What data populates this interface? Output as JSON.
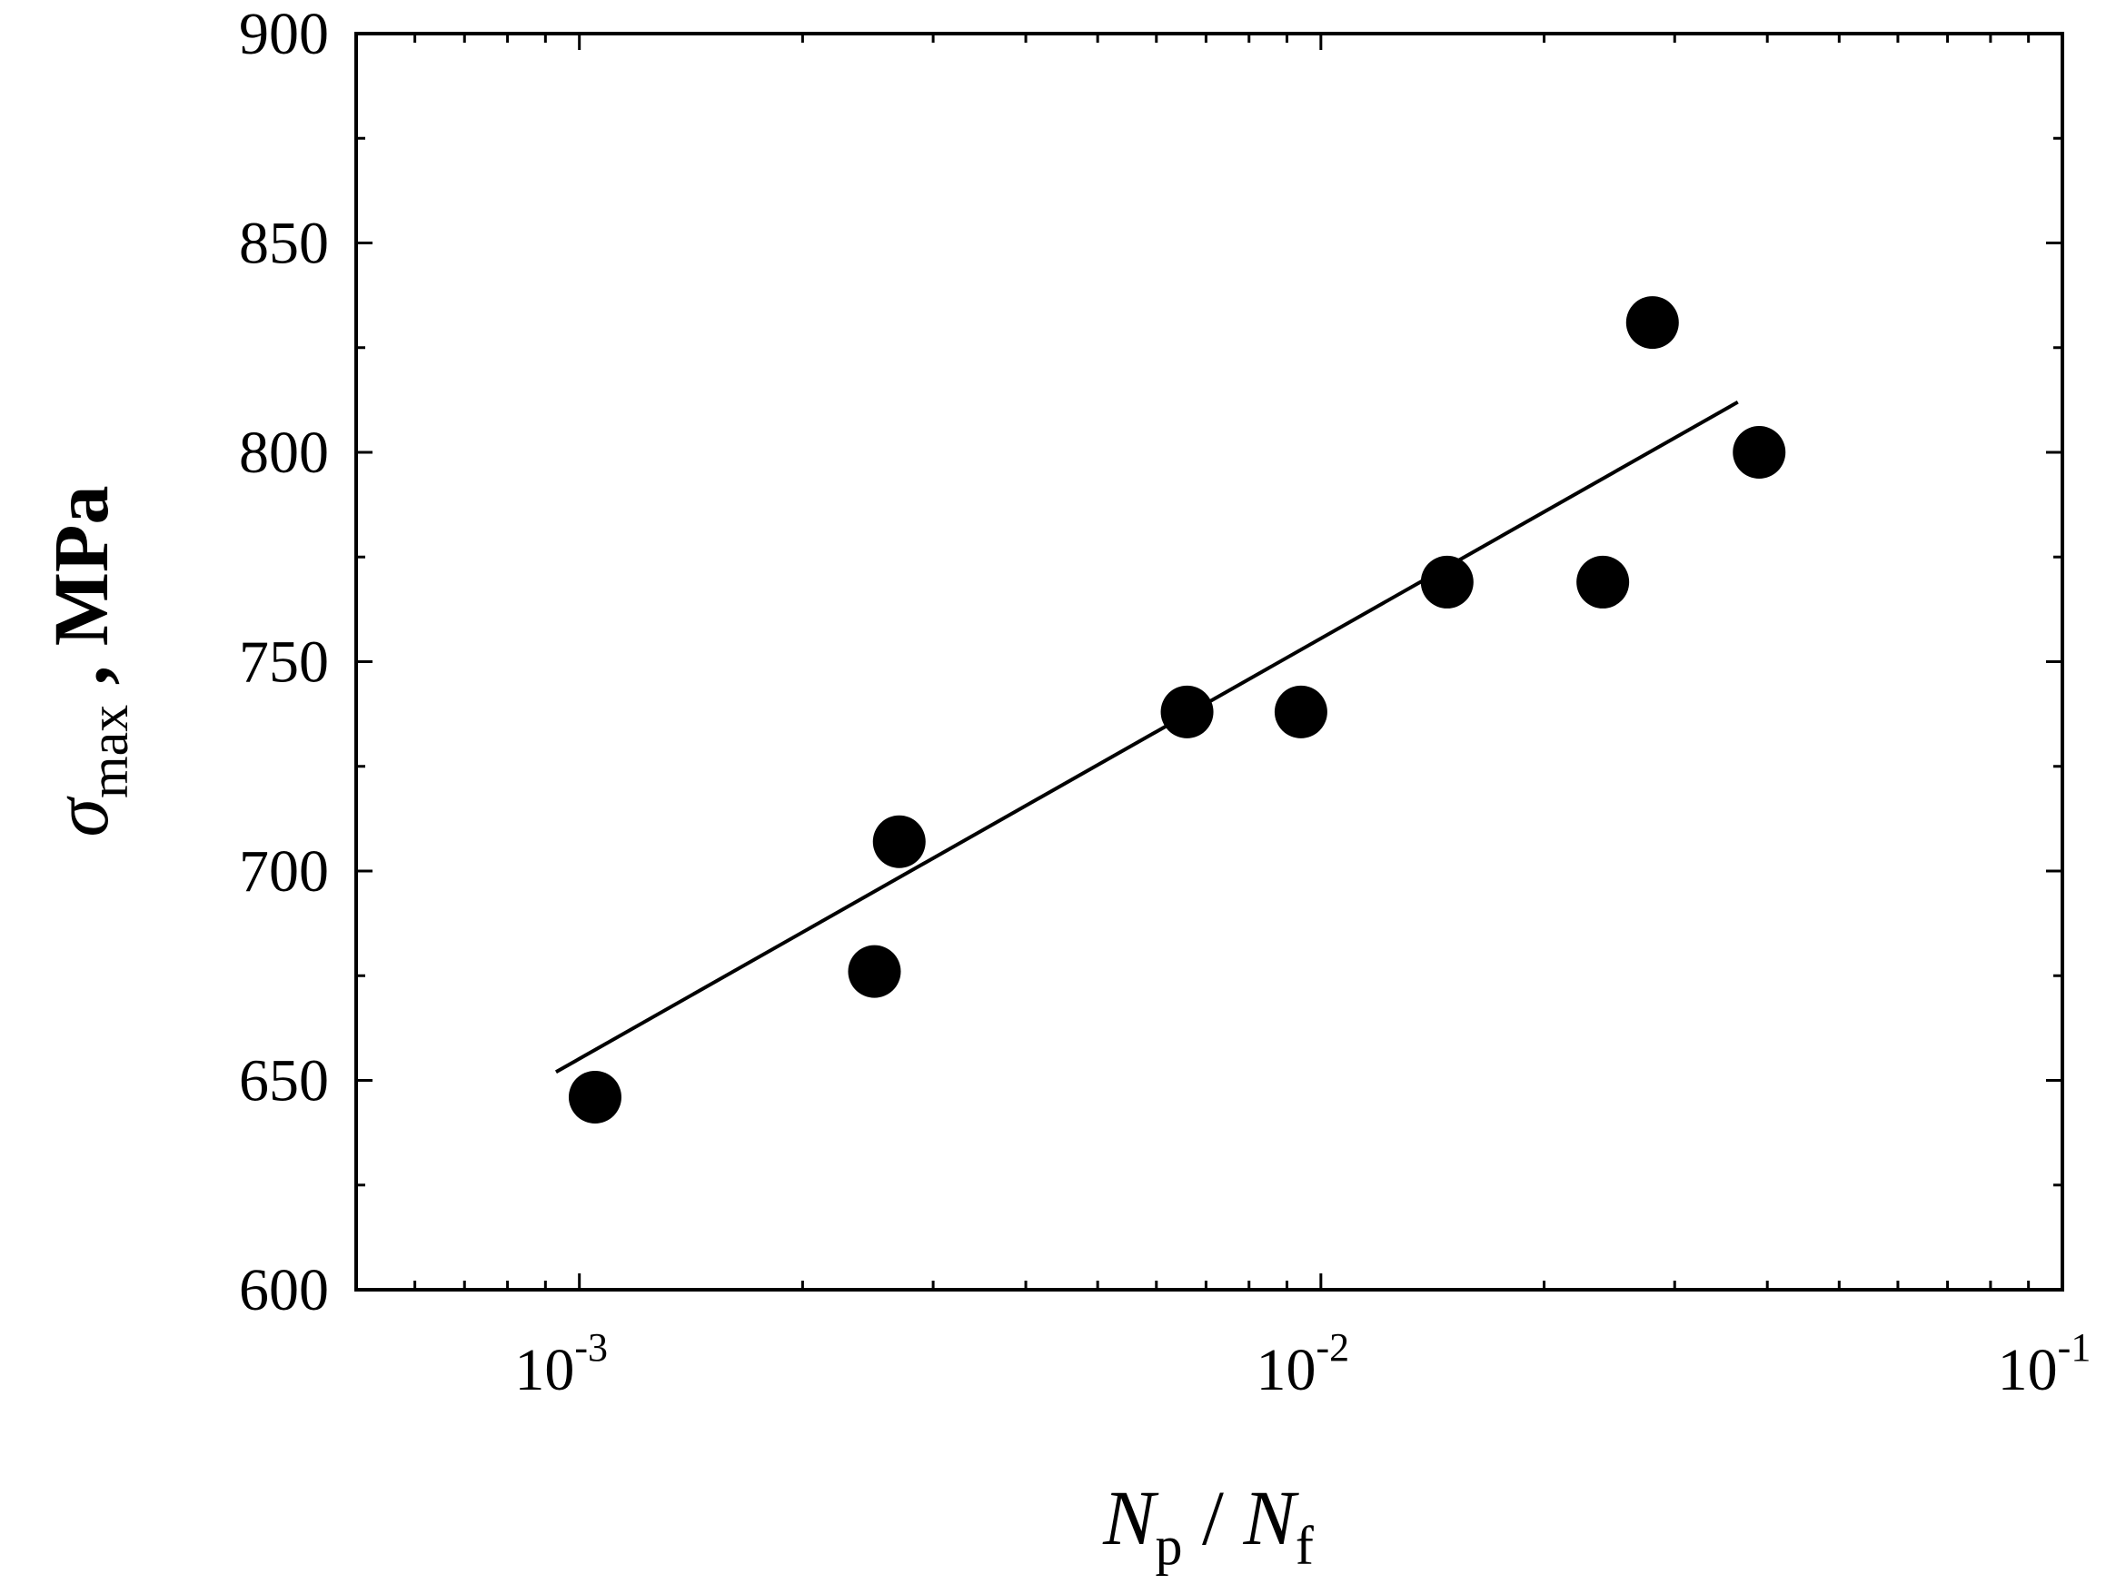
{
  "chart_data": {
    "type": "scatter",
    "title": "",
    "x_scale": "log",
    "xlim": [
      0.0005,
      0.1
    ],
    "ylim": [
      600,
      900
    ],
    "y_ticks": [
      600,
      650,
      700,
      750,
      800,
      850,
      900
    ],
    "y_tick_labels": [
      "600",
      "650",
      "700",
      "750",
      "800",
      "850",
      "900"
    ],
    "x_ticks": [
      0.001,
      0.01,
      0.1
    ],
    "x_tick_labels": [
      {
        "base": "10",
        "exp": "-3"
      },
      {
        "base": "10",
        "exp": "-2"
      },
      {
        "base": "10",
        "exp": "-1"
      }
    ],
    "xlabel": {
      "n1": "N",
      "sub1": "p",
      "sep": " / ",
      "n2": "N",
      "sub2": "f"
    },
    "ylabel": {
      "symbol": "σ",
      "sub": "max",
      "unit": " , MPa"
    },
    "grid": false,
    "series": [
      {
        "kind": "points",
        "marker": "filled-circle",
        "color": "#000000",
        "x": [
          0.00105,
          0.0025,
          0.0027,
          0.0066,
          0.0094,
          0.0148,
          0.024,
          0.028,
          0.039
        ],
        "y": [
          646,
          676,
          707,
          738,
          738,
          769,
          769,
          831,
          800
        ]
      },
      {
        "kind": "fit-line",
        "color": "#000000",
        "x": [
          0.00093,
          0.0365
        ],
        "y": [
          652,
          812
        ]
      }
    ]
  }
}
